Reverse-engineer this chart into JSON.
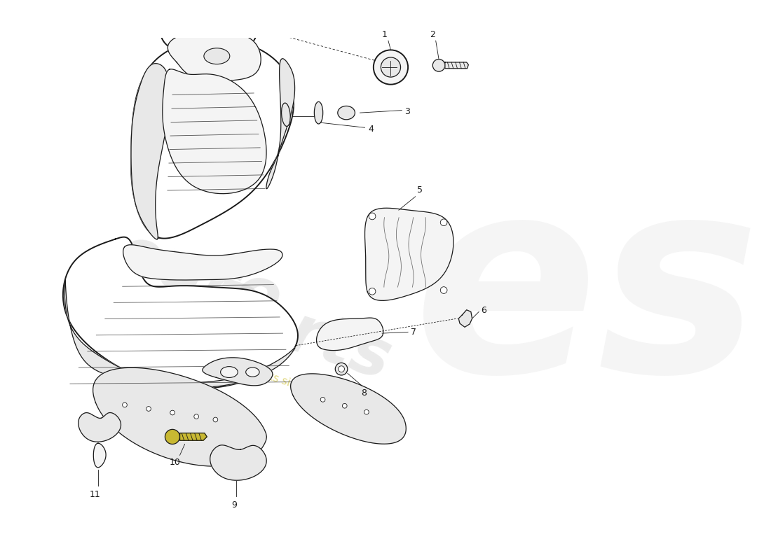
{
  "background_color": "#ffffff",
  "line_color": "#1a1a1a",
  "fill_white": "#ffffff",
  "fill_light": "#f4f4f4",
  "fill_mid": "#e8e8e8",
  "watermark_color": "#cccccc",
  "wm_yellow": "#d4c84a",
  "figsize": [
    11.0,
    8.0
  ],
  "dpi": 100,
  "xlim": [
    0,
    11
  ],
  "ylim": [
    0,
    8
  ]
}
